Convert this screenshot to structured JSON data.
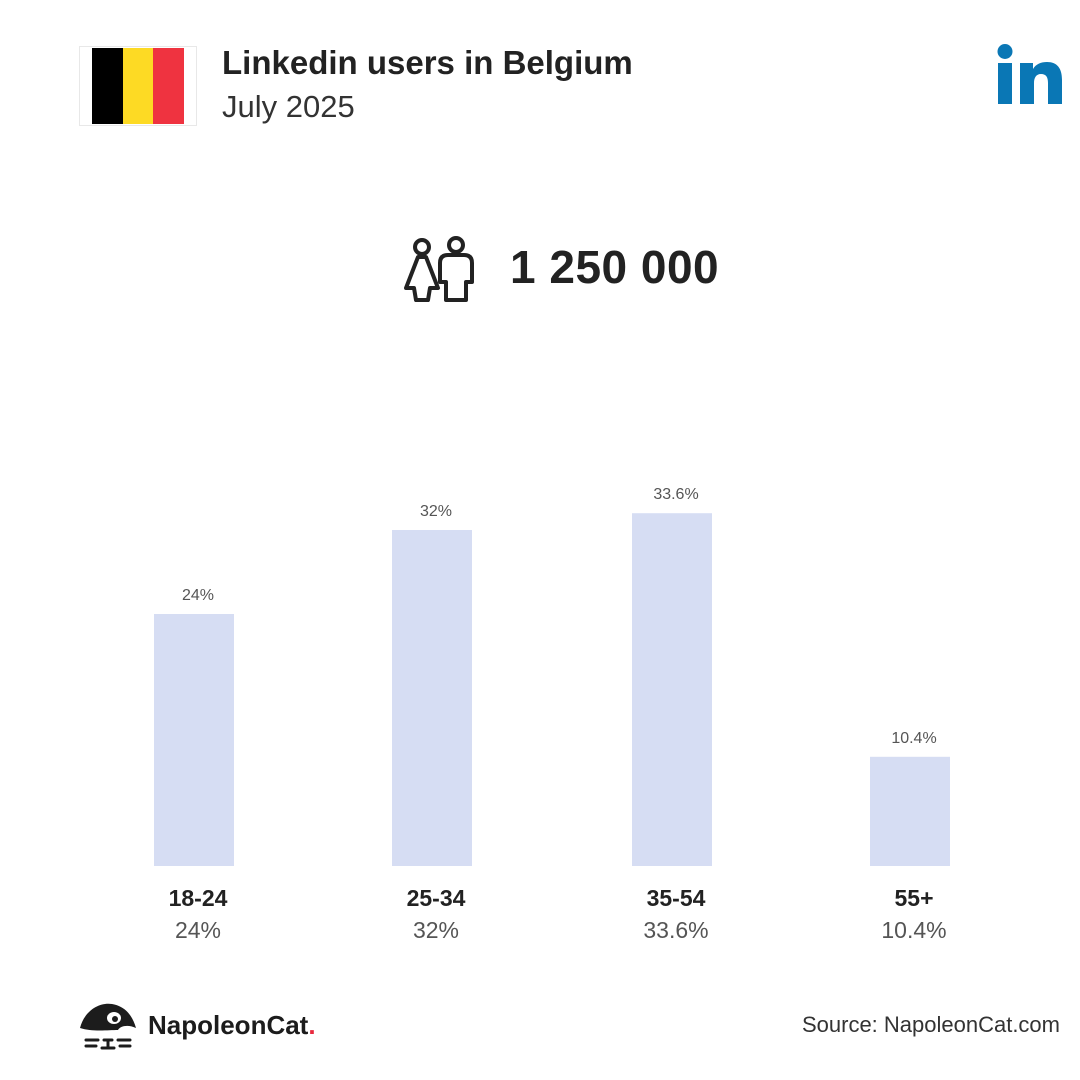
{
  "header": {
    "title": "Linkedin users in Belgium",
    "subtitle": "July 2025"
  },
  "flag": {
    "country": "Belgium",
    "stripes": [
      "#000000",
      "#FDDA24",
      "#EF3340"
    ]
  },
  "brand_logo_icon": "linkedin-logo",
  "total_users": "1 250 000",
  "colors": {
    "bar": "#D6DDF3",
    "linkedin_blue": "#0A77B5",
    "brand_dot": "#E8283D",
    "text": "#222222",
    "muted": "#555555"
  },
  "chart_data": {
    "type": "bar",
    "categories": [
      "18-24",
      "25-34",
      "35-54",
      "55+"
    ],
    "values": [
      24,
      32,
      33.6,
      10.4
    ],
    "value_labels": [
      "24%",
      "32%",
      "33.6%",
      "10.4%"
    ],
    "ylim": [
      0,
      40
    ],
    "grid": false,
    "legend": "none"
  },
  "footer": {
    "brand_name": "NapoleonCat",
    "brand_dot": ".",
    "source": "Source: NapoleonCat.com"
  }
}
